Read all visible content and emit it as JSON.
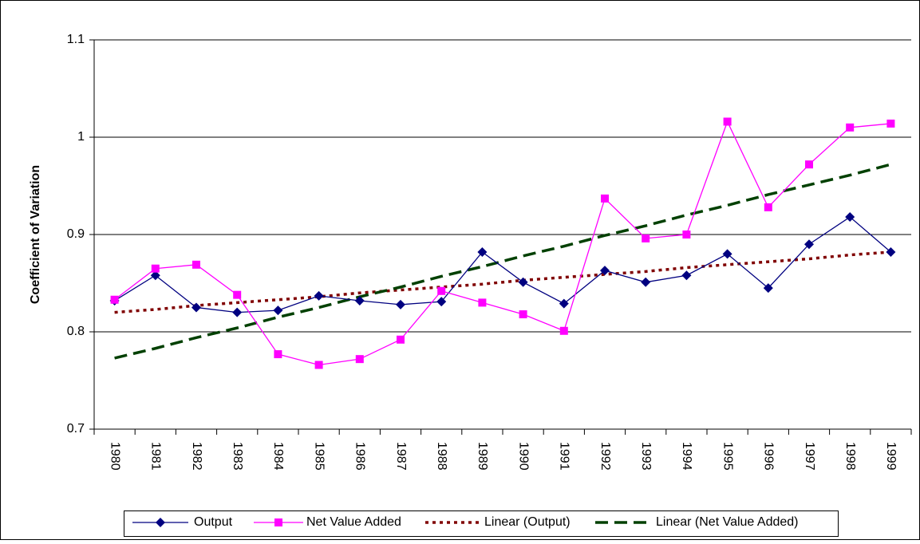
{
  "chart_data": {
    "type": "line",
    "y_label": "Coefficient of Variation",
    "categories": [
      "1980",
      "1981",
      "1982",
      "1983",
      "1984",
      "1985",
      "1986",
      "1987",
      "1988",
      "1989",
      "1990",
      "1991",
      "1992",
      "1993",
      "1994",
      "1995",
      "1996",
      "1997",
      "1998",
      "1999"
    ],
    "series": [
      {
        "name": "Output",
        "color": "#000080",
        "marker": "diamond",
        "dash": "solid",
        "values": [
          0.832,
          0.858,
          0.825,
          0.82,
          0.822,
          0.837,
          0.832,
          0.828,
          0.831,
          0.882,
          0.851,
          0.829,
          0.863,
          0.851,
          0.858,
          0.88,
          0.845,
          0.89,
          0.918,
          0.882
        ]
      },
      {
        "name": "Net Value Added",
        "color": "#ff00ff",
        "marker": "square",
        "dash": "solid",
        "values": [
          0.833,
          0.865,
          0.869,
          0.838,
          0.777,
          0.766,
          0.772,
          0.792,
          0.842,
          0.83,
          0.818,
          0.801,
          0.937,
          0.896,
          0.9,
          1.016,
          0.928,
          0.972,
          1.01,
          1.014
        ]
      },
      {
        "name": "Linear (Output)",
        "color": "#800000",
        "marker": "none",
        "dash": "dotted",
        "values": [
          0.82,
          0.823,
          0.827,
          0.83,
          0.833,
          0.836,
          0.84,
          0.843,
          0.846,
          0.849,
          0.853,
          0.856,
          0.859,
          0.862,
          0.866,
          0.869,
          0.872,
          0.875,
          0.879,
          0.882
        ]
      },
      {
        "name": "Linear (Net Value Added)",
        "color": "#004000",
        "marker": "none",
        "dash": "dashed",
        "values": [
          0.773,
          0.783,
          0.794,
          0.804,
          0.815,
          0.825,
          0.836,
          0.846,
          0.857,
          0.867,
          0.878,
          0.888,
          0.899,
          0.909,
          0.92,
          0.93,
          0.941,
          0.951,
          0.961,
          0.972
        ]
      }
    ],
    "ylim": [
      0.7,
      1.1
    ],
    "yticks": [
      0.7,
      0.8,
      0.9,
      1,
      1.1
    ],
    "grid": true,
    "legend": "bottom"
  }
}
